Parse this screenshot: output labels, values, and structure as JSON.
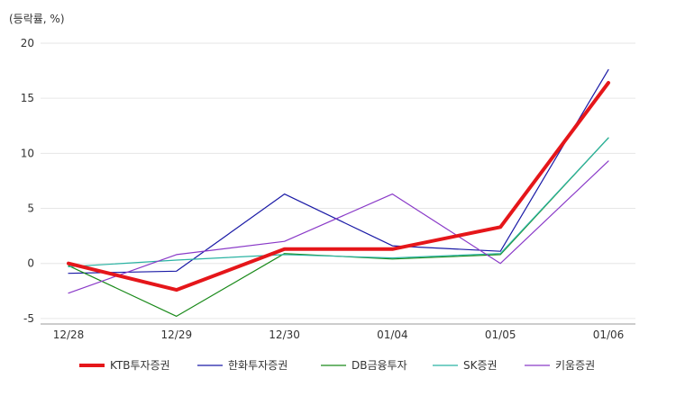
{
  "chart_data": {
    "type": "line",
    "unit_label": "(등락률, %)",
    "categories": [
      "12/28",
      "12/29",
      "12/30",
      "01/04",
      "01/05",
      "01/06"
    ],
    "y_ticks": [
      20,
      15,
      10,
      5,
      0,
      -5
    ],
    "ylim": [
      -5.5,
      20
    ],
    "grid": true,
    "legend_position": "bottom",
    "series": [
      {
        "name": "KTB투자증권",
        "color": "#e5161a",
        "width": 4,
        "values": [
          0.0,
          -2.4,
          1.3,
          1.3,
          3.3,
          16.4
        ]
      },
      {
        "name": "한화투자증권",
        "color": "#1a1aa6",
        "width": 1.2,
        "values": [
          -0.9,
          -0.7,
          6.3,
          1.6,
          1.1,
          17.6
        ]
      },
      {
        "name": "DB금융투자",
        "color": "#1a8a1a",
        "width": 1.2,
        "values": [
          -0.2,
          -4.8,
          0.9,
          0.4,
          0.8,
          11.4
        ]
      },
      {
        "name": "SK증권",
        "color": "#2bb3a3",
        "width": 1.2,
        "values": [
          -0.3,
          0.3,
          0.8,
          0.5,
          0.9,
          11.4
        ]
      },
      {
        "name": "키움증권",
        "color": "#8a3ac8",
        "width": 1.2,
        "values": [
          -2.7,
          0.8,
          2.0,
          6.3,
          0.0,
          9.3
        ]
      }
    ]
  }
}
